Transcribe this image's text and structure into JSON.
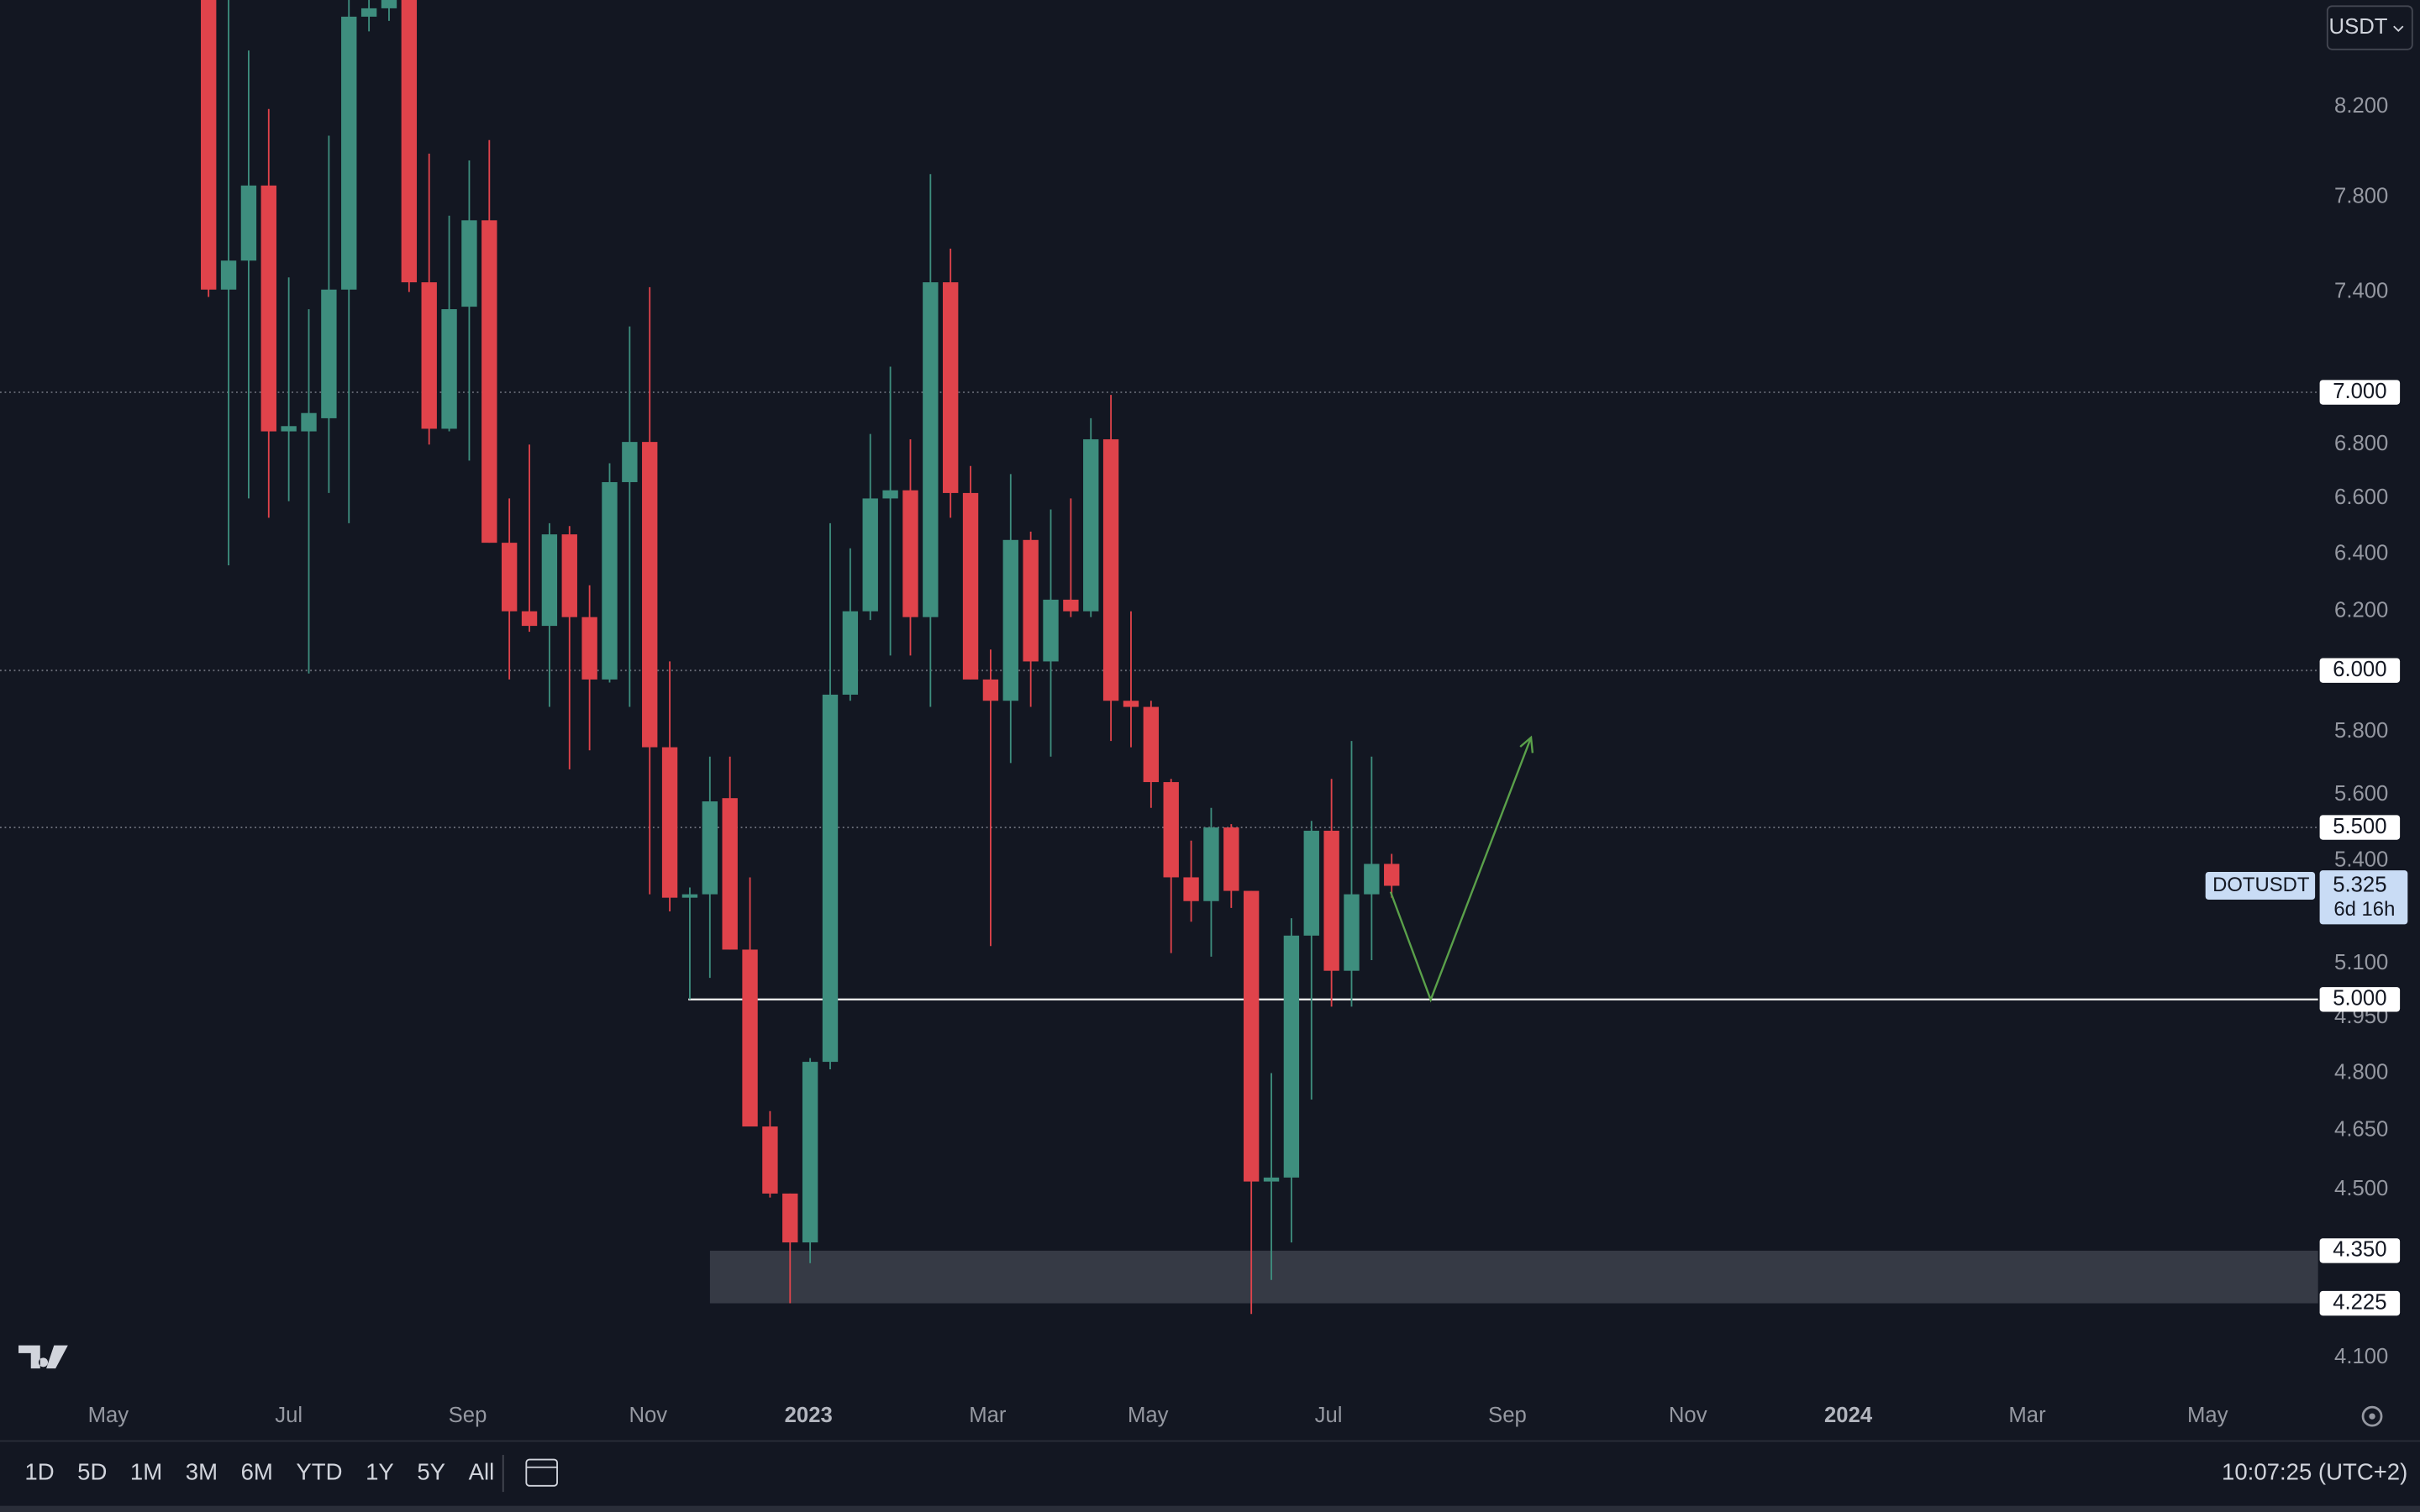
{
  "chart_data": {
    "type": "candlestick",
    "log_scale": true,
    "up_color": "#3e8e7e",
    "down_color": "#e0434b",
    "currency": "USDT",
    "symbol": "DOTUSDT",
    "last_price": {
      "value": 5.325,
      "label": "5.325"
    },
    "countdown": "6d 16h",
    "open": [
      8.9,
      7.41,
      7.53,
      7.85,
      6.85,
      6.85,
      6.9,
      7.41,
      8.62,
      8.66,
      8.9,
      7.44,
      6.86,
      7.34,
      7.7,
      6.44,
      6.2,
      6.15,
      6.47,
      6.18,
      5.97,
      6.66,
      6.81,
      5.75,
      5.29,
      5.3,
      5.59,
      5.14,
      4.66,
      4.49,
      4.37,
      4.83,
      5.92,
      6.2,
      6.6,
      6.63,
      6.18,
      7.44,
      6.62,
      5.97,
      5.9,
      6.45,
      6.03,
      6.24,
      6.2,
      6.82,
      5.9,
      5.88,
      5.64,
      5.35,
      5.28,
      5.5,
      5.31,
      4.52,
      4.53,
      5.18,
      5.49,
      5.08,
      5.3,
      5.39
    ],
    "high": [
      9.1,
      8.8,
      8.46,
      8.19,
      7.46,
      7.33,
      8.07,
      8.8,
      8.75,
      9.0,
      9.2,
      7.99,
      7.72,
      7.96,
      8.05,
      6.6,
      6.8,
      6.51,
      6.5,
      6.29,
      6.73,
      7.26,
      7.42,
      6.03,
      5.32,
      5.72,
      5.72,
      5.35,
      4.7,
      4.49,
      4.84,
      6.51,
      6.42,
      6.84,
      7.1,
      6.82,
      7.9,
      7.58,
      6.72,
      6.07,
      6.69,
      6.48,
      6.56,
      6.6,
      6.9,
      6.99,
      6.2,
      5.9,
      5.65,
      5.46,
      5.56,
      5.51,
      5.31,
      4.8,
      5.23,
      5.52,
      5.65,
      5.77,
      5.72,
      5.42
    ],
    "low": [
      7.38,
      6.36,
      6.6,
      6.53,
      6.59,
      5.99,
      6.62,
      6.51,
      8.55,
      8.6,
      7.4,
      6.8,
      6.85,
      6.74,
      6.44,
      5.97,
      6.13,
      5.88,
      5.68,
      5.74,
      5.96,
      5.88,
      5.3,
      5.25,
      5.0,
      5.06,
      5.14,
      4.66,
      4.48,
      4.225,
      4.32,
      4.81,
      5.9,
      6.17,
      6.05,
      6.05,
      5.88,
      6.53,
      5.97,
      5.15,
      5.7,
      5.88,
      5.72,
      6.18,
      6.18,
      5.77,
      5.75,
      5.56,
      5.13,
      5.22,
      5.12,
      5.26,
      4.2,
      4.28,
      4.37,
      4.73,
      4.98,
      4.98,
      5.11,
      5.29
    ],
    "close": [
      7.41,
      7.53,
      7.85,
      6.85,
      6.87,
      6.92,
      7.41,
      8.62,
      8.66,
      8.8,
      7.44,
      6.86,
      7.33,
      7.7,
      6.44,
      6.2,
      6.15,
      6.47,
      6.18,
      5.97,
      6.66,
      6.81,
      5.75,
      5.29,
      5.3,
      5.58,
      5.14,
      4.66,
      4.49,
      4.37,
      4.83,
      5.92,
      6.2,
      6.6,
      6.63,
      6.18,
      7.44,
      6.62,
      5.97,
      5.9,
      6.45,
      6.03,
      6.24,
      6.2,
      6.82,
      5.9,
      5.88,
      5.64,
      5.35,
      5.28,
      5.5,
      5.31,
      4.52,
      4.53,
      5.18,
      5.49,
      5.08,
      5.3,
      5.39,
      5.325
    ],
    "xlim": [
      -10.4,
      105.2
    ],
    "xticks": [
      {
        "value": -5,
        "label": "May"
      },
      {
        "value": 4,
        "label": "Jul"
      },
      {
        "value": 12.92,
        "label": "Sep"
      },
      {
        "value": 21.92,
        "label": "Nov"
      },
      {
        "value": 29.92,
        "label": "2023"
      },
      {
        "value": 38.85,
        "label": "Mar"
      },
      {
        "value": 46.85,
        "label": "May"
      },
      {
        "value": 55.85,
        "label": "Jul"
      },
      {
        "value": 64.77,
        "label": "Sep"
      },
      {
        "value": 73.77,
        "label": "Nov"
      },
      {
        "value": 81.77,
        "label": "2024"
      },
      {
        "value": 90.69,
        "label": "Mar"
      },
      {
        "value": 99.69,
        "label": "May"
      }
    ],
    "ylim": [
      4.03,
      8.7
    ],
    "yticks": [
      {
        "value": 8.2,
        "label": "8.200"
      },
      {
        "value": 7.8,
        "label": "7.800"
      },
      {
        "value": 7.4,
        "label": "7.400"
      },
      {
        "value": 6.8,
        "label": "6.800"
      },
      {
        "value": 6.6,
        "label": "6.600"
      },
      {
        "value": 6.4,
        "label": "6.400"
      },
      {
        "value": 6.2,
        "label": "6.200"
      },
      {
        "value": 5.8,
        "label": "5.800"
      },
      {
        "value": 5.6,
        "label": "5.600"
      },
      {
        "value": 5.4,
        "label": "5.400"
      },
      {
        "value": 5.1,
        "label": "5.100"
      },
      {
        "value": 4.95,
        "label": "4.950"
      },
      {
        "value": 4.8,
        "label": "4.800"
      },
      {
        "value": 4.65,
        "label": "4.650"
      },
      {
        "value": 4.5,
        "label": "4.500"
      },
      {
        "value": 4.1,
        "label": "4.100"
      }
    ],
    "hlines": [
      {
        "value": 7,
        "label": "7.000",
        "style": "dotted"
      },
      {
        "value": 6,
        "label": "6.000",
        "style": "dotted"
      },
      {
        "value": 5.5,
        "label": "5.500",
        "style": "dotted"
      },
      {
        "value": 5,
        "label": "5.000",
        "style": "solid"
      }
    ],
    "zone": {
      "low": {
        "value": 4.225,
        "label": "4.225"
      },
      "high": {
        "value": 4.35,
        "label": "4.350"
      }
    }
  },
  "toolbar": {
    "ranges": [
      "1D",
      "5D",
      "1M",
      "3M",
      "6M",
      "YTD",
      "1Y",
      "5Y",
      "All"
    ],
    "clock": "10:07:25 (UTC+2)"
  }
}
